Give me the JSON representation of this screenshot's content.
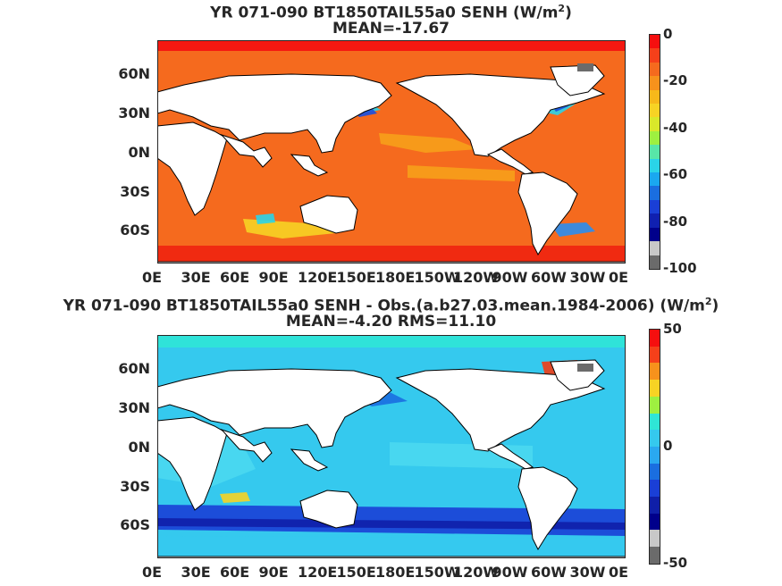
{
  "chart_data": [
    {
      "type": "heatmap",
      "title_prefix": "YR 071-090 BT1850TAIL55a0  SENH (W/m",
      "title_sup": "2",
      "title_suffix": ")",
      "subtitle": "MEAN=-17.67",
      "x_ticks": [
        "0E",
        "30E",
        "60E",
        "90E",
        "120E",
        "150E",
        "180E",
        "150W",
        "120W",
        "90W",
        "60W",
        "30W",
        "0E"
      ],
      "y_ticks": [
        "60N",
        "30N",
        "0N",
        "30S",
        "60S"
      ],
      "colorbar": {
        "ticks": [
          "0",
          "-20",
          "-40",
          "-60",
          "-80",
          "-100"
        ],
        "range": [
          -100,
          0
        ]
      },
      "colors": {
        "ocean": "#f56a1e",
        "cold": "#2ad4e8",
        "warm_edge": "#f50f0f",
        "land": "#ffffff",
        "missing": "#6b6b6b"
      }
    },
    {
      "type": "heatmap",
      "title_prefix": "YR 071-090 BT1850TAIL55a0 SENH - Obs.(a.b27.03.mean.1984-2006) (W/m",
      "title_sup": "2",
      "title_suffix": ")",
      "subtitle": "MEAN=-4.20 RMS=11.10",
      "x_ticks": [
        "0E",
        "30E",
        "60E",
        "90E",
        "120E",
        "150E",
        "180E",
        "150W",
        "120W",
        "90W",
        "60W",
        "30W",
        "0E"
      ],
      "y_ticks": [
        "60N",
        "30N",
        "0N",
        "30S",
        "60S"
      ],
      "colorbar": {
        "ticks": [
          "50",
          "0",
          "-50"
        ],
        "range": [
          -50,
          50
        ]
      },
      "colors": {
        "ocean": "#35c9ee",
        "cold": "#1a3fd6",
        "warm_edge": "#f23c14",
        "land": "#ffffff",
        "missing": "#6b6b6b"
      }
    }
  ]
}
